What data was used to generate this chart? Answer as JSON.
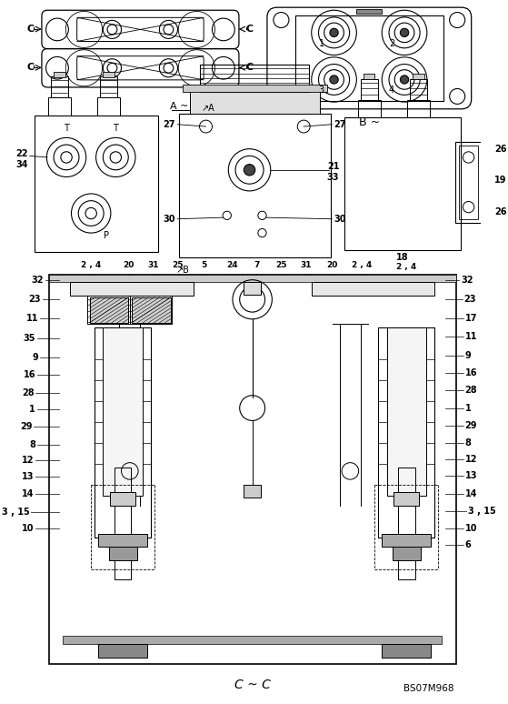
{
  "bg_color": "#ffffff",
  "line_color": "#000000",
  "fig_width": 6.48,
  "fig_height": 10.0,
  "bottom_label": "C ~ C",
  "ref_code": "BS07M968"
}
